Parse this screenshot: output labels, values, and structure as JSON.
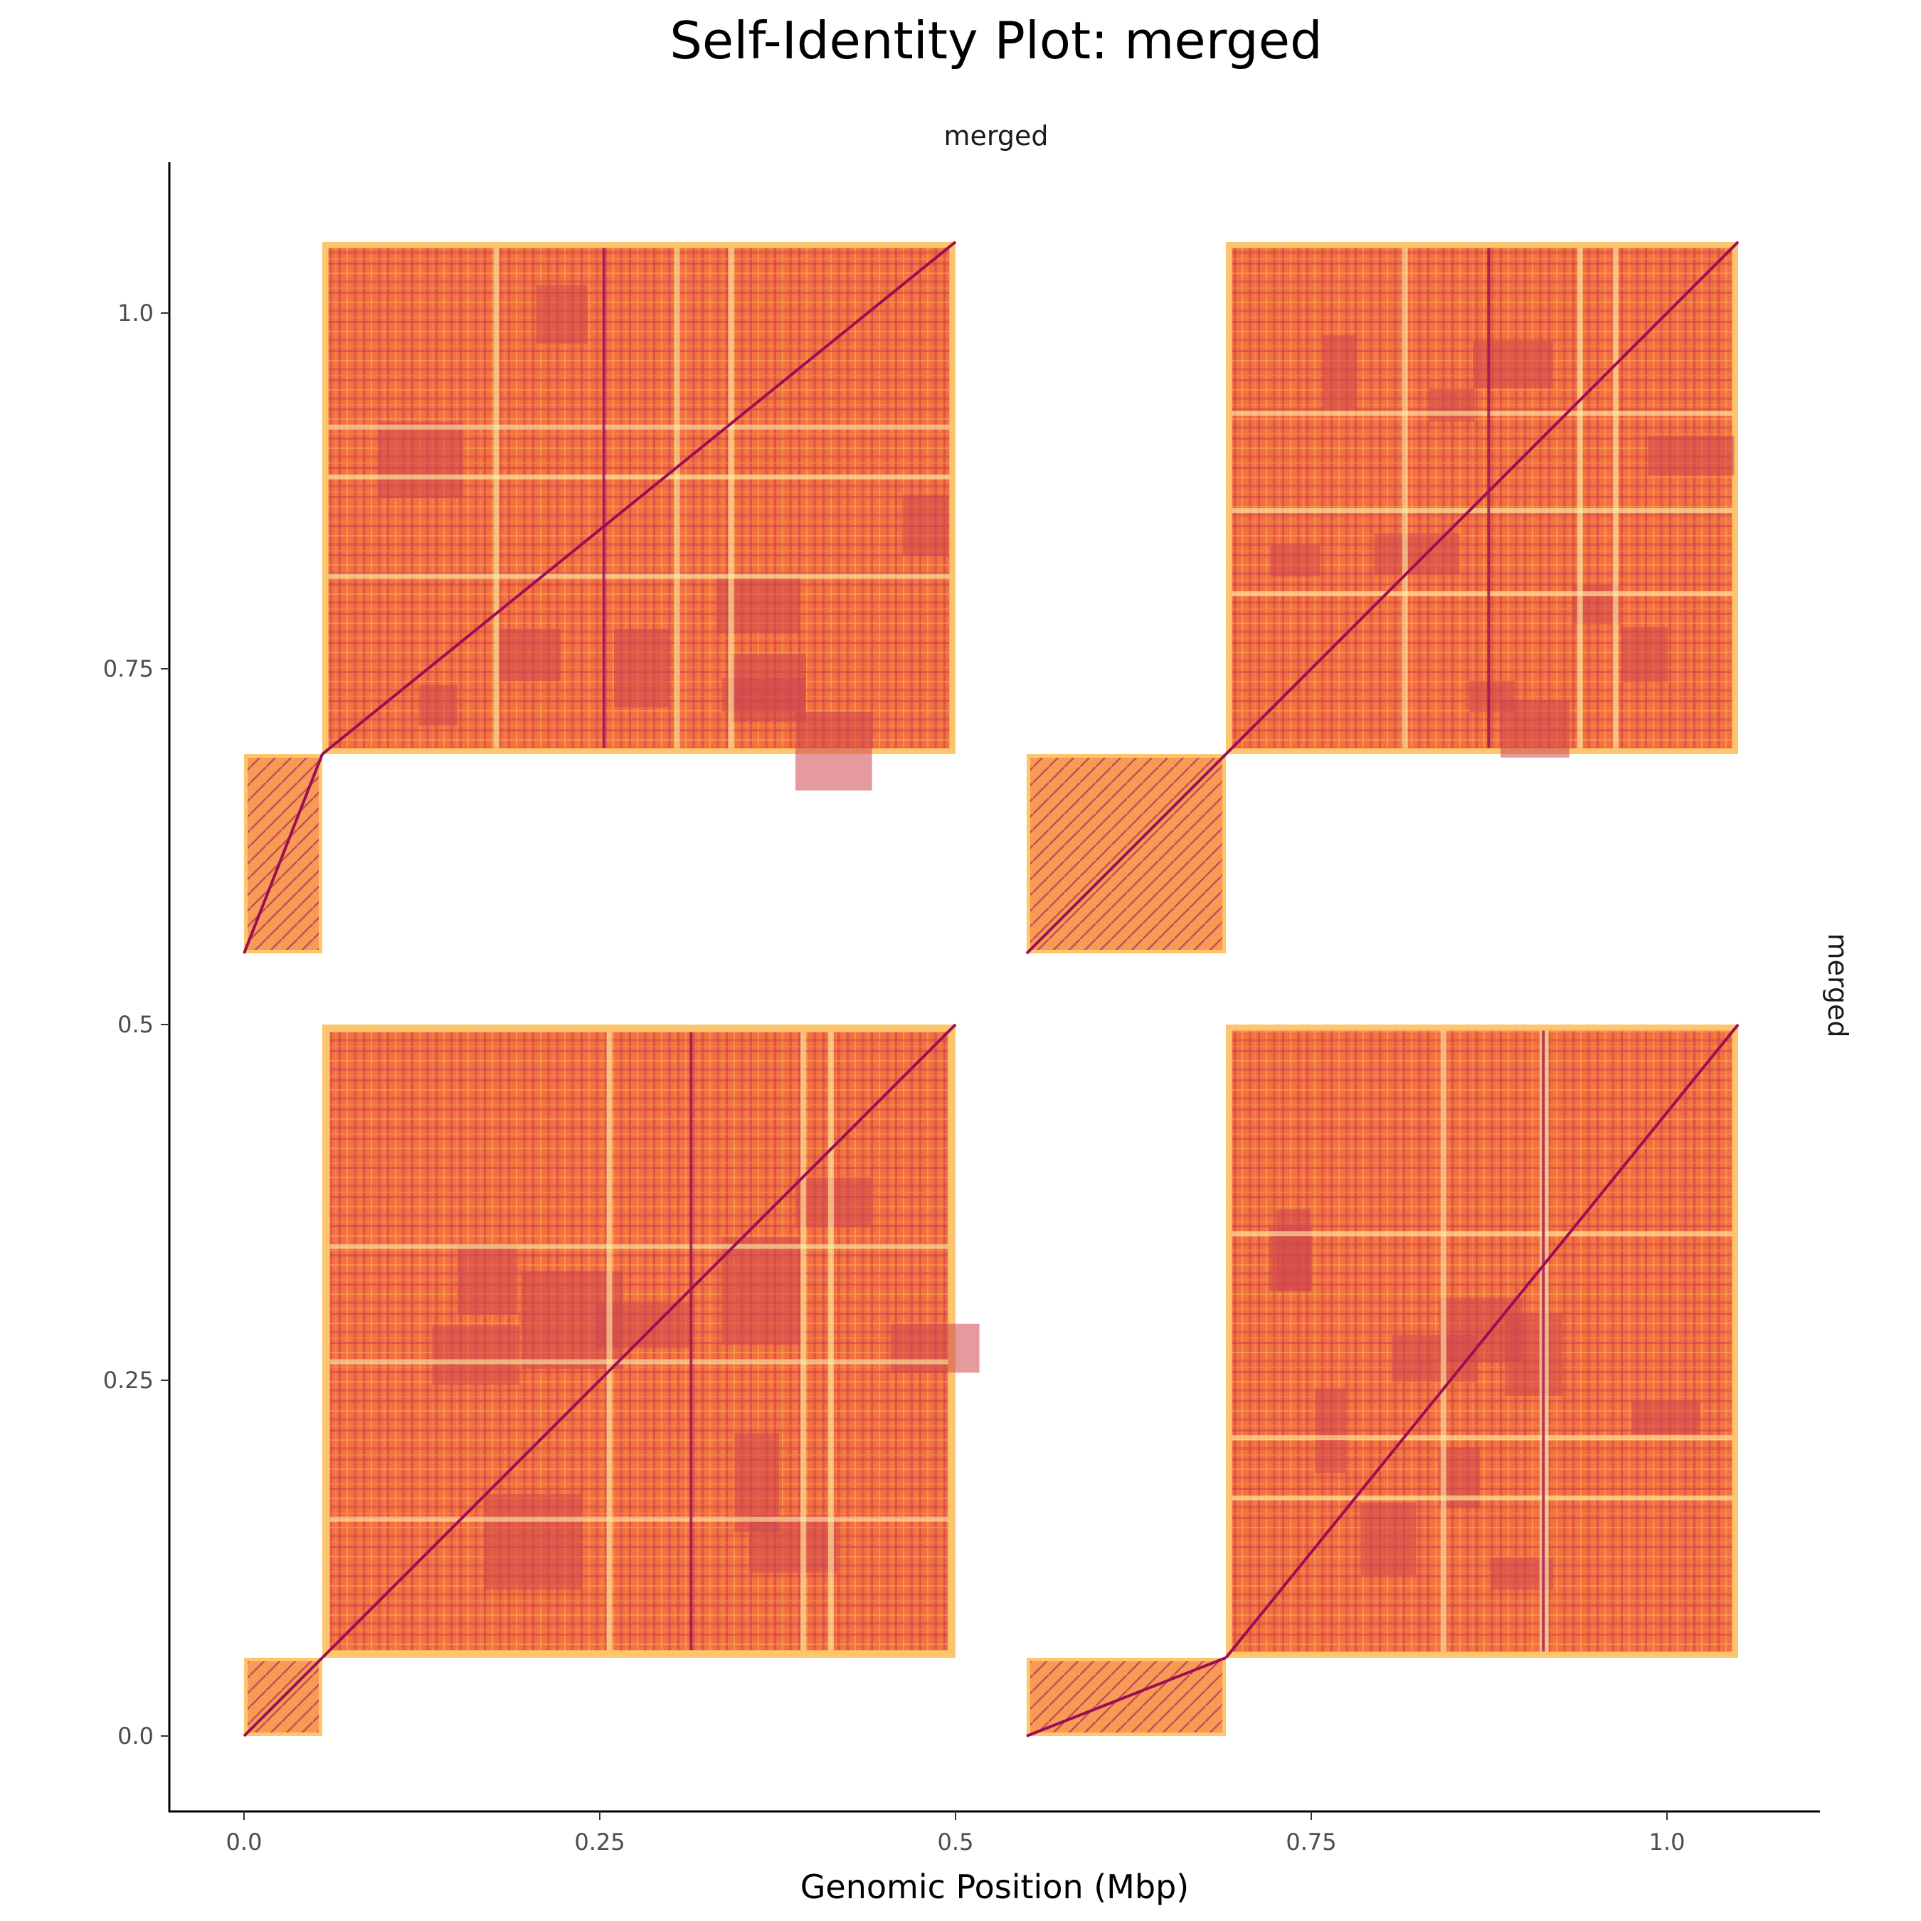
{
  "chart_data": {
    "type": "heatmap",
    "title": "Self-Identity Plot: merged",
    "facet_label_top": "merged",
    "facet_label_right": "merged",
    "xlabel": "Genomic Position (Mbp)",
    "ylabel": "",
    "xlim": [
      -0.05,
      1.105
    ],
    "ylim": [
      -0.055,
      1.105
    ],
    "x_ticks": [
      0.0,
      0.25,
      0.5,
      0.75,
      1.0
    ],
    "x_tick_labels": [
      "0.0",
      "0.25",
      "0.5",
      "0.75",
      "1.0"
    ],
    "y_ticks": [
      0.0,
      0.25,
      0.5,
      0.75,
      1.0
    ],
    "y_tick_labels": [
      "0.0",
      "0.25",
      "0.5",
      "0.75",
      "1.0"
    ],
    "grid": false,
    "legend": "none",
    "colorscale": [
      "#fff3a8",
      "#fdc56d",
      "#f4713f",
      "#d0474f",
      "#9b0e52"
    ],
    "blocks": [
      {
        "x": [
          0.0,
          0.055
        ],
        "y": [
          0.0,
          0.055
        ],
        "kind": "small"
      },
      {
        "x": [
          0.055,
          0.5
        ],
        "y": [
          0.055,
          0.5
        ],
        "kind": "large"
      },
      {
        "x": [
          0.55,
          0.69
        ],
        "y": [
          0.0,
          0.055
        ],
        "kind": "small"
      },
      {
        "x": [
          0.69,
          1.05
        ],
        "y": [
          0.055,
          0.5
        ],
        "kind": "large"
      },
      {
        "x": [
          0.0,
          0.055
        ],
        "y": [
          0.55,
          0.69
        ],
        "kind": "small"
      },
      {
        "x": [
          0.055,
          0.5
        ],
        "y": [
          0.69,
          1.05
        ],
        "kind": "large"
      },
      {
        "x": [
          0.55,
          0.69
        ],
        "y": [
          0.55,
          0.69
        ],
        "kind": "small"
      },
      {
        "x": [
          0.69,
          1.05
        ],
        "y": [
          0.69,
          1.05
        ],
        "kind": "large"
      }
    ]
  }
}
